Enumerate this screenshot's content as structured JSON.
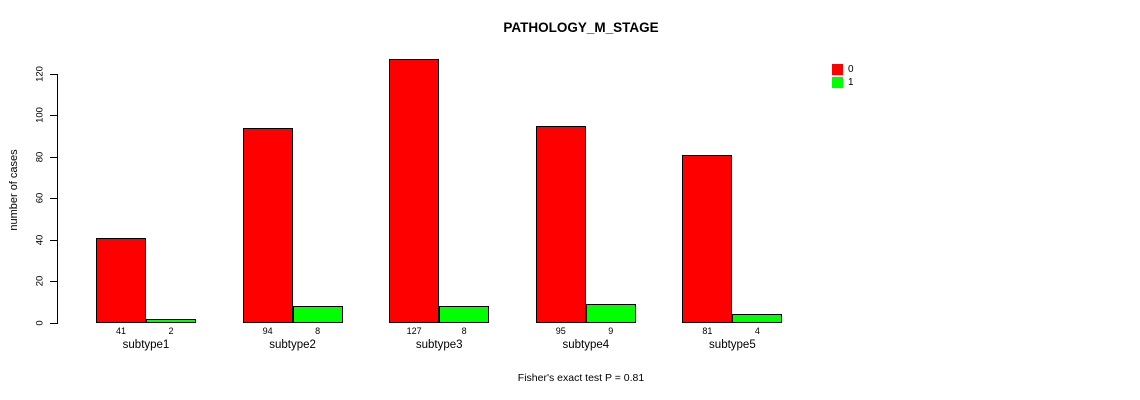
{
  "chart_data": {
    "type": "bar",
    "title": "PATHOLOGY_M_STAGE",
    "ylabel": "number of cases",
    "xlabel": "",
    "footer": "Fisher's exact test P = 0.81",
    "categories": [
      "subtype1",
      "subtype2",
      "subtype3",
      "subtype4",
      "subtype5"
    ],
    "series": [
      {
        "name": "0",
        "color": "#FF0000",
        "values": [
          41,
          94,
          127,
          95,
          81
        ]
      },
      {
        "name": "1",
        "color": "#00FF00",
        "values": [
          2,
          8,
          8,
          9,
          4
        ]
      }
    ],
    "yticks": [
      0,
      20,
      40,
      60,
      80,
      100,
      120
    ],
    "ylim": [
      0,
      120
    ],
    "grid": false,
    "legend_position": "top-right",
    "bar_value_labels": true,
    "axis_color": "#000000",
    "background_color": "#FFFFFF"
  }
}
